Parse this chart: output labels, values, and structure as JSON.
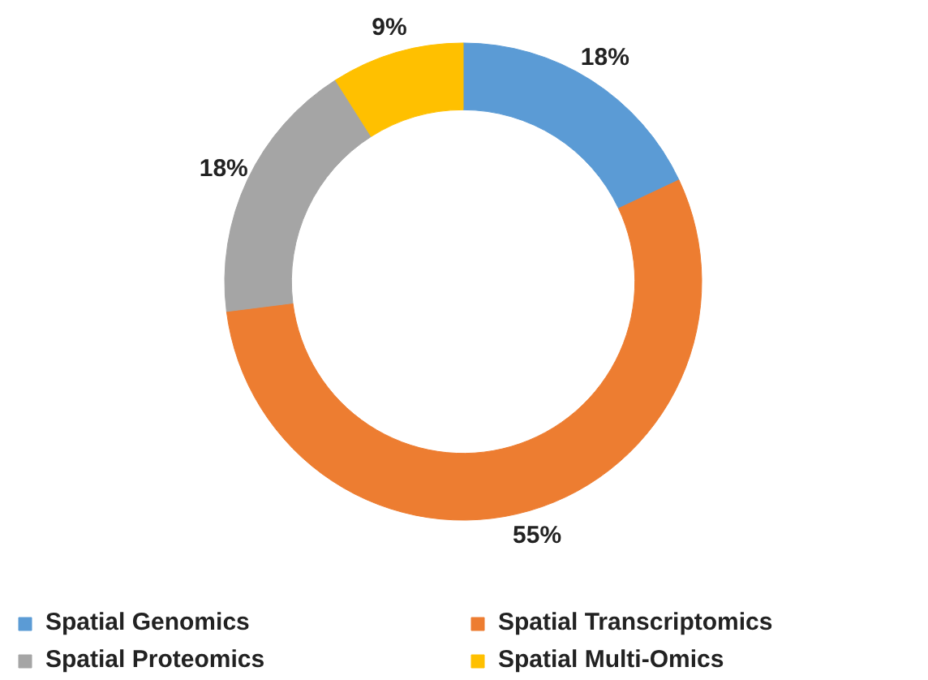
{
  "chart_data": {
    "type": "donut",
    "categories": [
      "Spatial Genomics",
      "Spatial Transcriptomics",
      "Spatial Proteomics",
      "Spatial Multi-Omics"
    ],
    "values": [
      18,
      55,
      18,
      9
    ],
    "colors": [
      "#5b9bd5",
      "#ed7d31",
      "#a5a5a5",
      "#ffc000"
    ],
    "value_labels": [
      "18%",
      "55%",
      "18%",
      "9%"
    ],
    "legend": "bottom"
  }
}
